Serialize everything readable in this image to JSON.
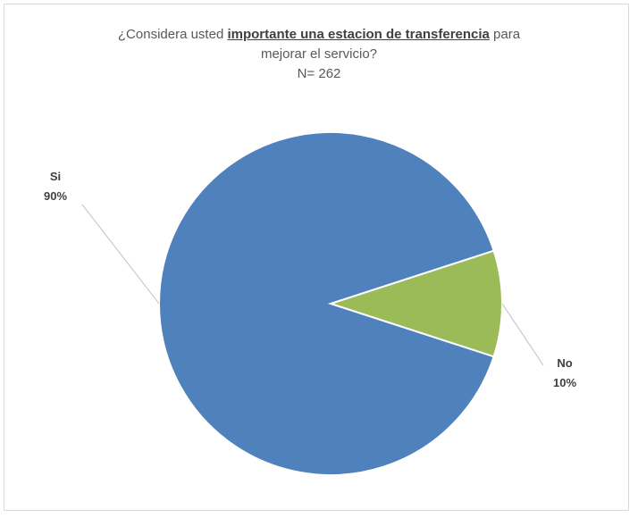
{
  "chart_data": {
    "type": "pie",
    "title": {
      "line1_before": "¿Considera usted ",
      "line1_emph": "importante una estacion de transferencia",
      "line1_after": " para",
      "line2": "mejorar el servicio?",
      "line3": "N= 262"
    },
    "categories": [
      "No",
      "Si"
    ],
    "values": [
      10,
      90
    ],
    "value_labels": [
      "10%",
      "90%"
    ],
    "colors": [
      "#9bbb59",
      "#4f81bd"
    ],
    "legend": "none"
  }
}
